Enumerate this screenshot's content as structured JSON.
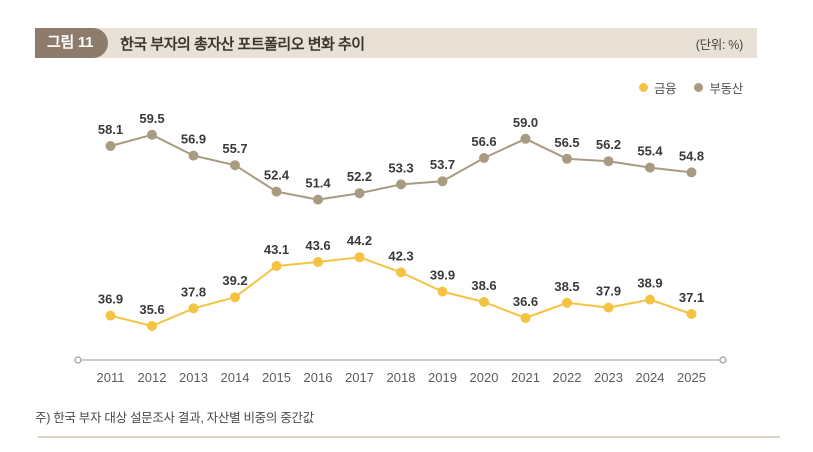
{
  "header": {
    "badge": "그림 11",
    "title": "한국 부자의 총자산 포트폴리오 변화 추이",
    "unit": "(단위: %)"
  },
  "legend": [
    {
      "label": "금융",
      "color": "#f5c342"
    },
    {
      "label": "부동산",
      "color": "#a89b82"
    }
  ],
  "chart_data": {
    "type": "line",
    "title": "한국 부자의 총자산 포트폴리오 변화 추이",
    "unit": "%",
    "categories": [
      "2011",
      "2012",
      "2013",
      "2014",
      "2015",
      "2016",
      "2017",
      "2018",
      "2019",
      "2020",
      "2021",
      "2022",
      "2023",
      "2024",
      "2025"
    ],
    "series": [
      {
        "name": "금융",
        "color": "#f5c342",
        "values": [
          36.9,
          35.6,
          37.8,
          39.2,
          43.1,
          43.6,
          44.2,
          42.3,
          39.9,
          38.6,
          36.6,
          38.5,
          37.9,
          38.9,
          37.1
        ]
      },
      {
        "name": "부동산",
        "color": "#a89b82",
        "values": [
          58.1,
          59.5,
          56.9,
          55.7,
          52.4,
          51.4,
          52.2,
          53.3,
          53.7,
          56.6,
          59.0,
          56.5,
          56.2,
          55.4,
          54.8
        ]
      }
    ],
    "data_labels": true,
    "grid": false,
    "legend_position": "top-right",
    "ylim": [
      31,
      65
    ],
    "axis_color": "#9b9b9b",
    "label_color": "#3a3a3a"
  },
  "footnote": "주) 한국 부자 대상 설문조사 결과, 자산별 비중의 중간값"
}
